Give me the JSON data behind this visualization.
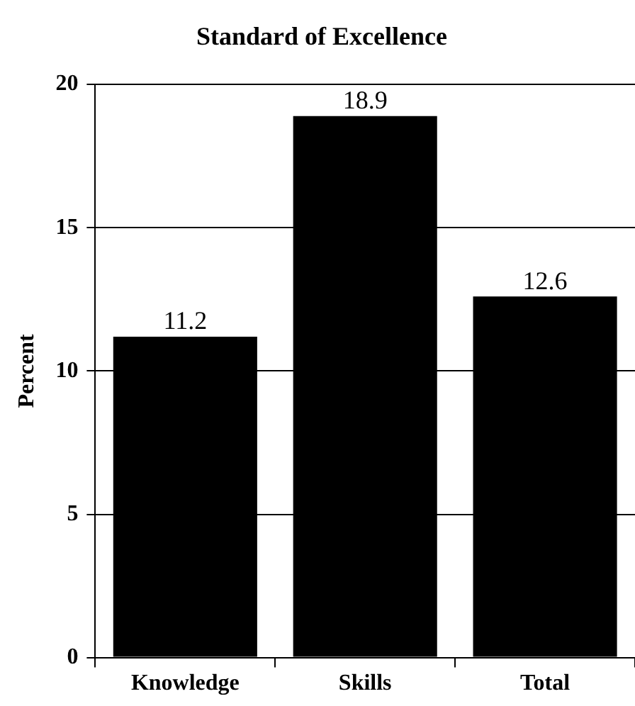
{
  "chart_data": {
    "type": "bar",
    "title": "Standard of Excellence",
    "ylabel": "Percent",
    "categories": [
      "Knowledge",
      "Skills",
      "Total"
    ],
    "values": [
      11.2,
      18.9,
      12.6
    ],
    "color": "#000000",
    "ylim": [
      0,
      20
    ],
    "yticks": [
      0,
      5,
      10,
      15,
      20
    ],
    "grid": "y",
    "data_labels": true,
    "legend": false
  }
}
